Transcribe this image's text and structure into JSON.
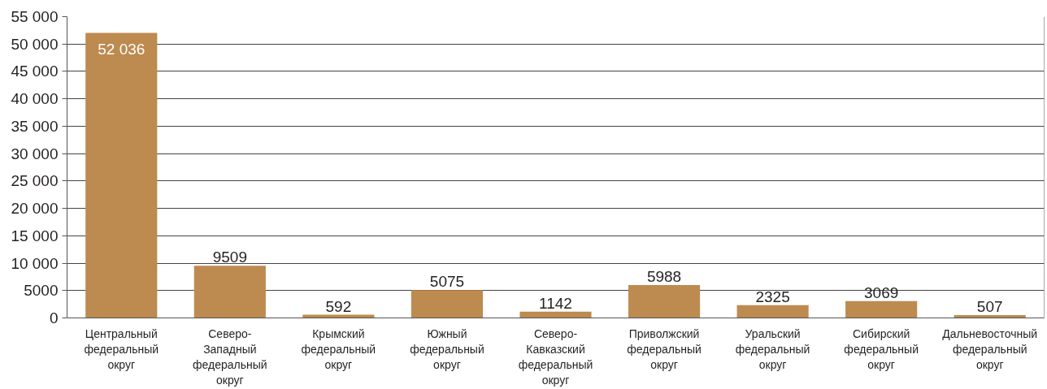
{
  "chart_data": {
    "type": "bar",
    "categories": [
      "Центральный\nфедеральный\nокруг",
      "Северо-\nЗападный\nфедеральный\nокруг",
      "Крымский\nфедеральный\nокруг",
      "Южный\nфедеральный\nокруг",
      "Северо-\nКавказский\nфедеральный\nокруг",
      "Приволжский\nфедеральный\nокруг",
      "Уральский\nфедеральный\nокруг",
      "Сибирский\nфедеральный\nокруг",
      "Дальневосточный\nфедеральный\nокруг"
    ],
    "values": [
      52036,
      9509,
      592,
      5075,
      1142,
      5988,
      2325,
      3069,
      507
    ],
    "value_labels": [
      "52 036",
      "9509",
      "592",
      "5075",
      "1142",
      "5988",
      "2325",
      "3069",
      "507"
    ],
    "color": "#bd8a4f",
    "ylim": [
      0,
      55000
    ],
    "yticks": [
      0,
      5000,
      {
        "value": 10000,
        "label": "10 000"
      },
      {
        "value": 15000,
        "label": "15 000"
      },
      {
        "value": 20000,
        "label": "20 000"
      },
      {
        "value": 25000,
        "label": "25 000"
      },
      {
        "value": 30000,
        "label": "30 000"
      },
      {
        "value": 35000,
        "label": "35 000"
      },
      {
        "value": 40000,
        "label": "40 000"
      },
      {
        "value": 45000,
        "label": "45 000"
      },
      {
        "value": 50000,
        "label": "50 000"
      },
      {
        "value": 55000,
        "label": "55 000"
      }
    ],
    "grid": "y"
  }
}
